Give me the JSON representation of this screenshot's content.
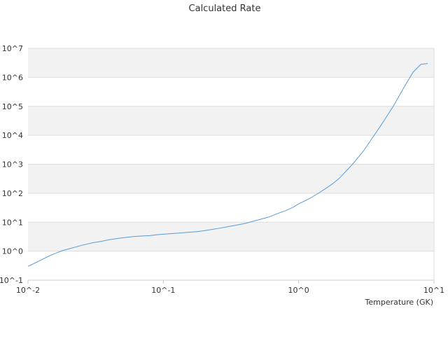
{
  "chart_data": {
    "type": "line",
    "title": "Calculated Rate",
    "xlabel": "Temperature (GK)",
    "ylabel": "",
    "x_scale": "log",
    "y_scale": "log",
    "xlim": [
      0.01,
      10
    ],
    "ylim": [
      0.1,
      10000000
    ],
    "grid": "horizontal-bands",
    "x_ticks": [
      "10^-2",
      "10^-1",
      "10^0",
      "10^1"
    ],
    "y_ticks": [
      "10^-1",
      "10^0",
      "10^1",
      "10^2",
      "10^3",
      "10^4",
      "10^5",
      "10^6",
      "10^7"
    ],
    "colors": {
      "line": "#5b9bd5",
      "band": "#f2f2f2",
      "gridline": "#dddddd",
      "axis": "#cccccc",
      "text": "#333333"
    },
    "series": [
      {
        "name": "",
        "x": [
          0.01,
          0.012,
          0.014,
          0.016,
          0.018,
          0.02,
          0.025,
          0.03,
          0.035,
          0.04,
          0.05,
          0.06,
          0.07,
          0.08,
          0.09,
          0.1,
          0.12,
          0.14,
          0.16,
          0.18,
          0.2,
          0.25,
          0.3,
          0.35,
          0.4,
          0.5,
          0.6,
          0.7,
          0.8,
          0.9,
          1.0,
          1.2,
          1.4,
          1.6,
          1.8,
          2.0,
          2.5,
          3.0,
          3.5,
          4.0,
          5.0,
          6.0,
          7.0,
          8.0,
          9.0
        ],
        "y": [
          0.3,
          0.45,
          0.65,
          0.85,
          1.05,
          1.2,
          1.6,
          1.95,
          2.2,
          2.5,
          2.9,
          3.2,
          3.35,
          3.45,
          3.7,
          3.85,
          4.1,
          4.35,
          4.55,
          4.75,
          5.1,
          6.0,
          7.0,
          8.0,
          9.0,
          12.0,
          15.0,
          20.0,
          25.0,
          32.0,
          43.0,
          65.0,
          100.0,
          150.0,
          220.0,
          330.0,
          1000.0,
          2800.0,
          8000.0,
          20000.0,
          100000.0,
          450000.0,
          1500000.0,
          2800000.0,
          3000000.0
        ]
      }
    ]
  }
}
